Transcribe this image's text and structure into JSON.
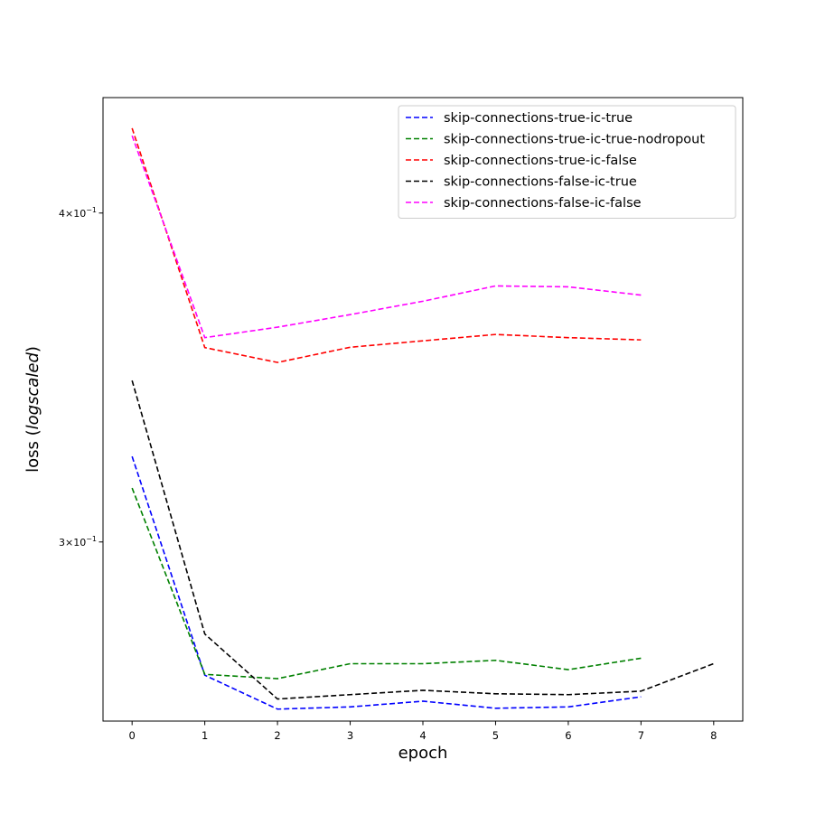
{
  "chart_data": {
    "type": "line",
    "xlabel": "epoch",
    "ylabel_prefix": "loss (",
    "ylabel_italic": "logscaled",
    "ylabel_suffix": ")",
    "yscale": "log",
    "xlim": [
      -0.4,
      8.4
    ],
    "ylim": [
      0.2565,
      0.4425
    ],
    "xticks": [
      0,
      1,
      2,
      3,
      4,
      5,
      6,
      7,
      8
    ],
    "xtick_labels": [
      "0",
      "1",
      "2",
      "3",
      "4",
      "5",
      "6",
      "7",
      "8"
    ],
    "yticks": [
      0.3,
      0.4
    ],
    "ytick_labels": [
      {
        "mant": "3",
        "exp": "−1"
      },
      {
        "mant": "4",
        "exp": "−1"
      }
    ],
    "grid": false,
    "legend_position": "top-right",
    "series": [
      {
        "name": "skip-connections-true-ic-true",
        "color": "#0000ff",
        "x": [
          0,
          1,
          2,
          3,
          4,
          5,
          6,
          7
        ],
        "y": [
          0.3233,
          0.267,
          0.2592,
          0.2597,
          0.261,
          0.2594,
          0.2597,
          0.262
        ]
      },
      {
        "name": "skip-connections-true-ic-true-nodropout",
        "color": "#008000",
        "x": [
          0,
          1,
          2,
          3,
          4,
          5,
          6,
          7
        ],
        "y": [
          0.3145,
          0.2672,
          0.2662,
          0.2697,
          0.2697,
          0.2705,
          0.2683,
          0.271
        ]
      },
      {
        "name": "skip-connections-true-ic-false",
        "color": "#ff0000",
        "x": [
          0,
          1,
          2,
          3,
          4,
          5,
          6,
          7
        ],
        "y": [
          0.4308,
          0.3556,
          0.351,
          0.3557,
          0.3577,
          0.3597,
          0.3587,
          0.358
        ]
      },
      {
        "name": "skip-connections-false-ic-true",
        "color": "#000000",
        "x": [
          0,
          1,
          2,
          3,
          4,
          5,
          6,
          7,
          8
        ],
        "y": [
          0.3455,
          0.2768,
          0.2615,
          0.2625,
          0.2635,
          0.2627,
          0.2625,
          0.2633,
          0.2697
        ]
      },
      {
        "name": "skip-connections-false-ic-false",
        "color": "#ff00ff",
        "x": [
          0,
          1,
          2,
          3,
          4,
          5,
          6,
          7
        ],
        "y": [
          0.428,
          0.3587,
          0.362,
          0.366,
          0.3703,
          0.3753,
          0.375,
          0.3723
        ]
      }
    ]
  }
}
